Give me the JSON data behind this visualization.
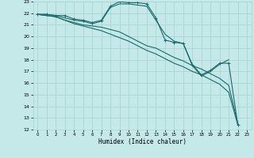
{
  "xlabel": "Humidex (Indice chaleur)",
  "xlim": [
    -0.5,
    23.5
  ],
  "ylim": [
    12,
    23
  ],
  "yticks": [
    12,
    13,
    14,
    15,
    16,
    17,
    18,
    19,
    20,
    21,
    22,
    23
  ],
  "xticks": [
    0,
    1,
    2,
    3,
    4,
    5,
    6,
    7,
    8,
    9,
    10,
    11,
    12,
    13,
    14,
    15,
    16,
    17,
    18,
    19,
    20,
    21,
    22,
    23
  ],
  "background_color": "#c5e8e8",
  "grid_color": "#aad4d4",
  "line_color": "#1a6b6b",
  "line1_x": [
    0,
    1,
    2,
    3,
    4,
    5,
    6,
    7,
    8,
    9,
    10,
    11,
    12,
    13,
    14,
    15,
    16,
    17,
    18,
    19,
    20,
    21,
    22
  ],
  "line1_y": [
    21.9,
    21.9,
    21.8,
    21.8,
    21.5,
    21.4,
    21.2,
    21.4,
    22.6,
    23.0,
    22.9,
    22.9,
    22.8,
    21.6,
    19.7,
    19.5,
    19.4,
    17.6,
    16.7,
    17.1,
    17.7,
    17.7,
    12.4
  ],
  "line2_x": [
    0,
    1,
    2,
    3,
    4,
    5,
    6,
    7,
    8,
    9,
    10,
    11,
    12,
    13,
    14,
    15,
    16,
    17,
    18,
    19,
    20,
    21
  ],
  "line2_y": [
    21.9,
    21.9,
    21.8,
    21.6,
    21.4,
    21.3,
    21.1,
    21.3,
    22.5,
    22.8,
    22.8,
    22.7,
    22.6,
    21.4,
    20.2,
    19.6,
    19.4,
    17.5,
    16.6,
    17.0,
    17.6,
    18.0
  ],
  "line3_x": [
    0,
    1,
    2,
    3,
    4,
    5,
    6,
    7,
    8,
    9,
    10,
    11,
    12,
    13,
    14,
    15,
    16,
    17,
    18,
    19,
    20,
    21,
    22
  ],
  "line3_y": [
    21.9,
    21.8,
    21.7,
    21.4,
    21.2,
    21.0,
    20.9,
    20.8,
    20.6,
    20.4,
    20.0,
    19.6,
    19.2,
    19.0,
    18.6,
    18.2,
    17.9,
    17.5,
    17.2,
    16.8,
    16.4,
    15.8,
    12.5
  ],
  "line4_x": [
    0,
    1,
    2,
    3,
    4,
    5,
    6,
    7,
    8,
    9,
    10,
    11,
    12,
    13,
    14,
    15,
    16,
    17,
    18,
    19,
    20,
    21,
    22
  ],
  "line4_y": [
    21.9,
    21.8,
    21.7,
    21.4,
    21.1,
    20.9,
    20.7,
    20.5,
    20.2,
    19.9,
    19.6,
    19.2,
    18.8,
    18.5,
    18.1,
    17.7,
    17.4,
    17.0,
    16.7,
    16.3,
    15.9,
    15.2,
    12.4
  ]
}
